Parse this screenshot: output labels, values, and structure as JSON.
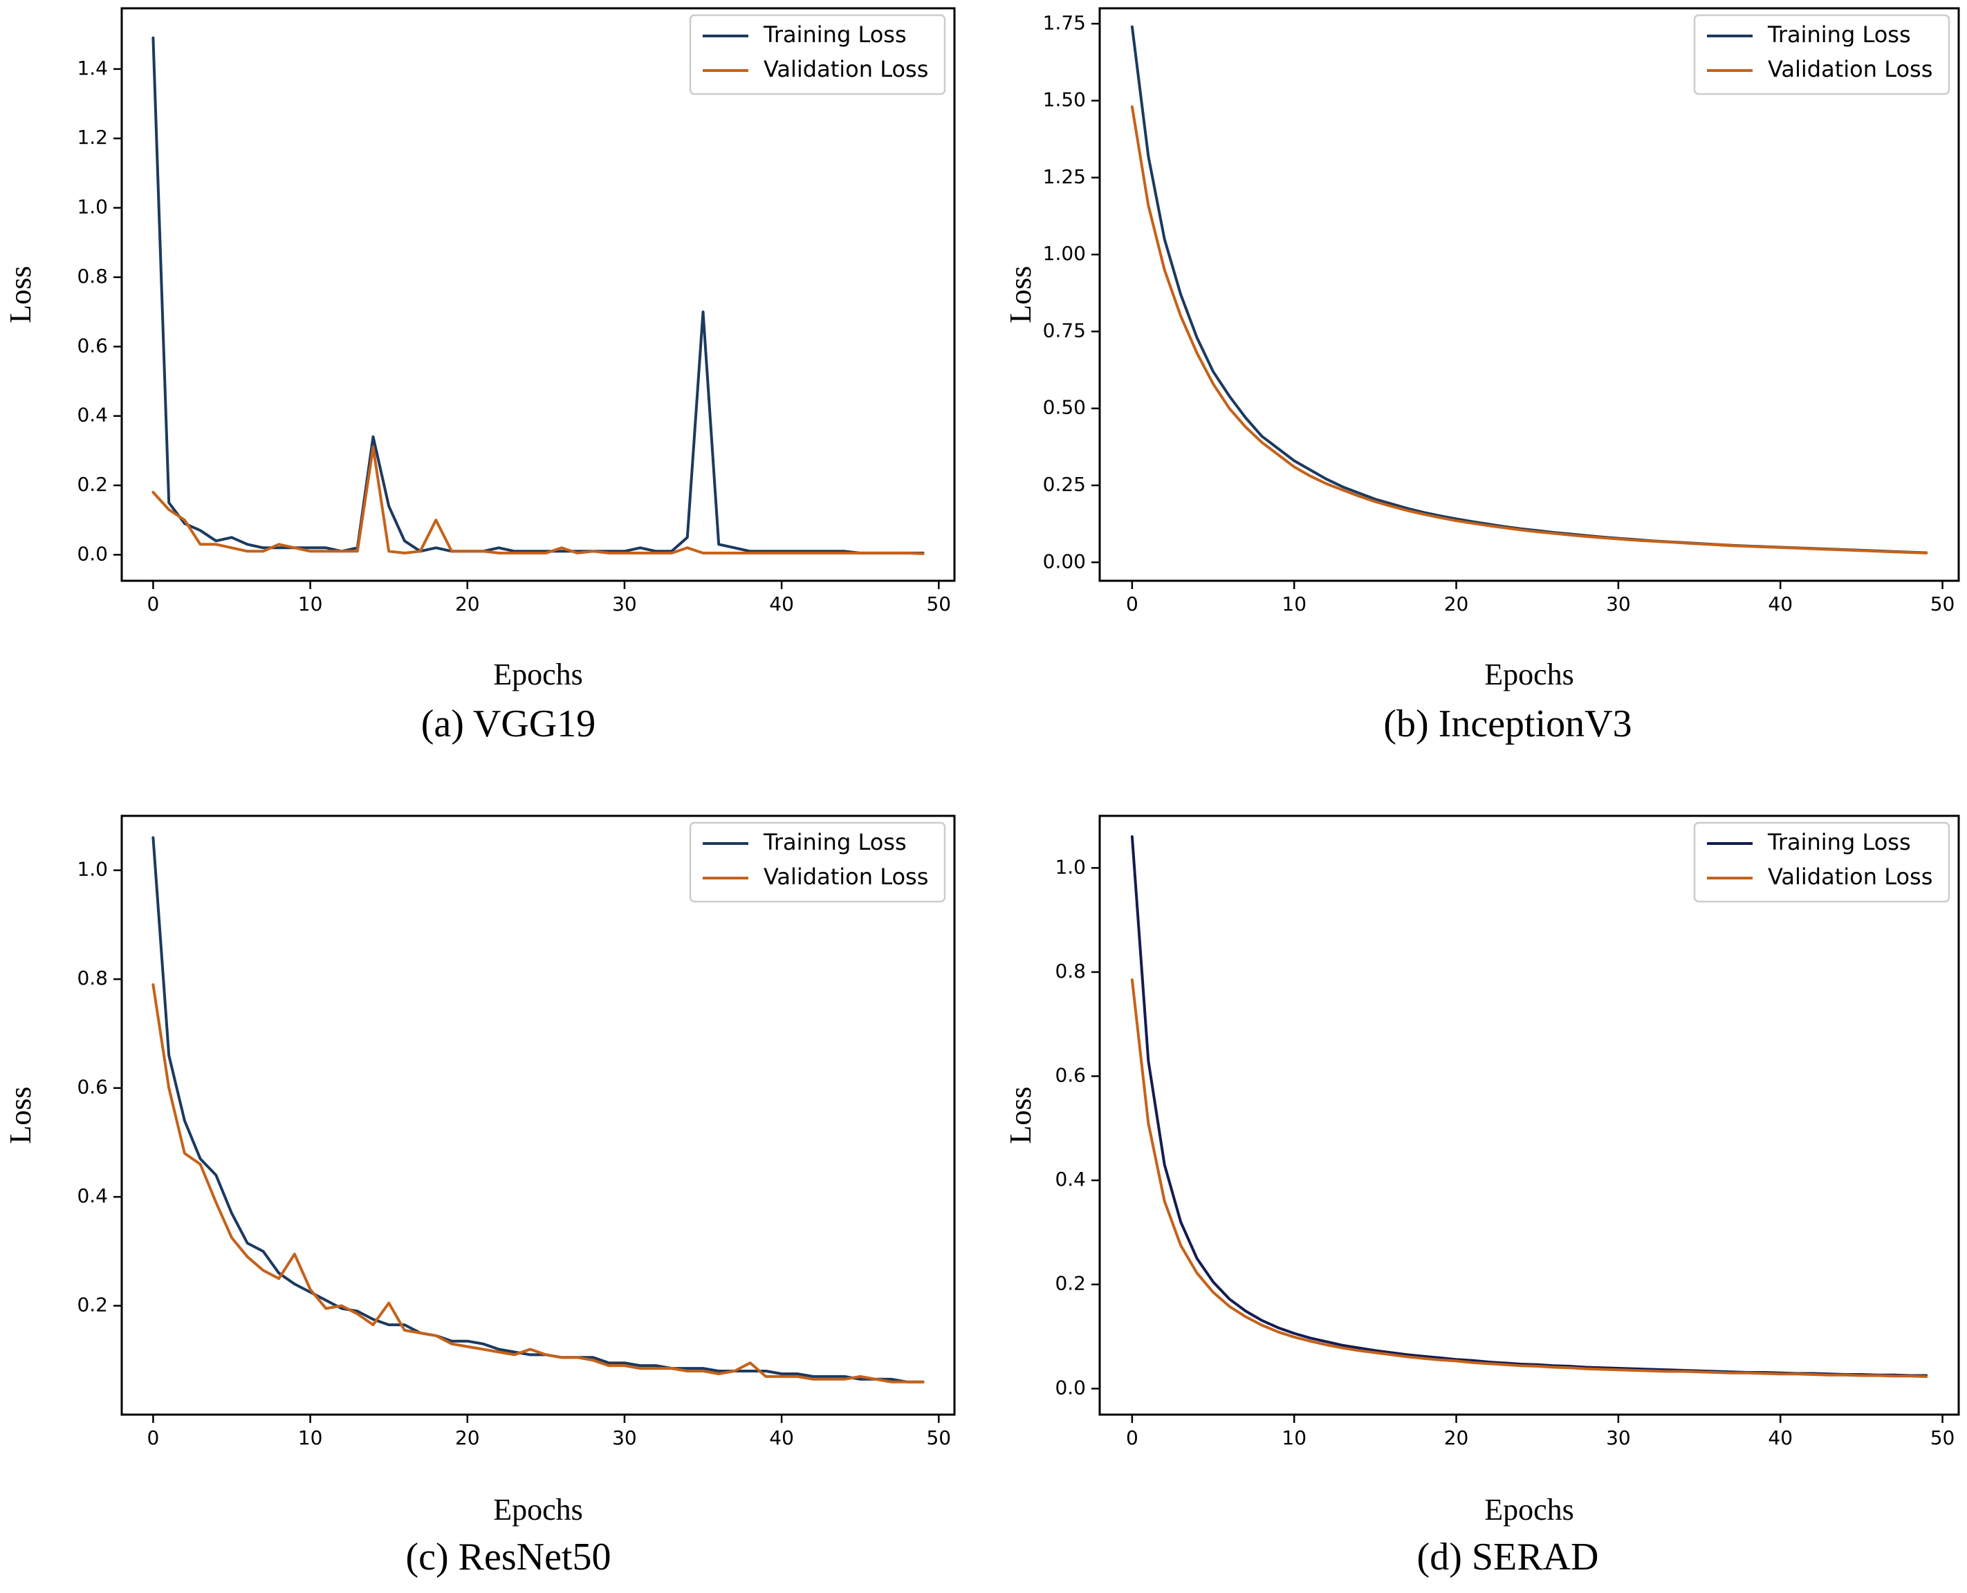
{
  "colors": {
    "training": "#1b3a5e",
    "validation": "#c5621a",
    "training_dark": "#141c50"
  },
  "chart_data": [
    {
      "type": "line",
      "caption": "(a) VGG19",
      "xlabel": "Epochs",
      "ylabel": "Loss",
      "xlim": [
        -2,
        51
      ],
      "ylim": [
        -0.075,
        1.575
      ],
      "xticks": [
        0,
        10,
        20,
        30,
        40,
        50
      ],
      "yticks": [
        0.0,
        0.2,
        0.4,
        0.6,
        0.8,
        1.0,
        1.2,
        1.4
      ],
      "ytick_labels": [
        "0.0",
        "0.2",
        "0.4",
        "0.6",
        "0.8",
        "1.0",
        "1.2",
        "1.4"
      ],
      "legend_position": "top-right",
      "series": [
        {
          "name": "Training Loss",
          "color_key": "training",
          "values": [
            1.49,
            0.15,
            0.09,
            0.07,
            0.04,
            0.05,
            0.03,
            0.02,
            0.02,
            0.02,
            0.02,
            0.02,
            0.01,
            0.02,
            0.34,
            0.14,
            0.04,
            0.01,
            0.02,
            0.01,
            0.01,
            0.01,
            0.02,
            0.01,
            0.01,
            0.01,
            0.01,
            0.01,
            0.01,
            0.01,
            0.01,
            0.02,
            0.01,
            0.01,
            0.05,
            0.7,
            0.03,
            0.02,
            0.01,
            0.01,
            0.01,
            0.01,
            0.01,
            0.01,
            0.01,
            0.005,
            0.005,
            0.005,
            0.005,
            0.005
          ]
        },
        {
          "name": "Validation Loss",
          "color_key": "validation",
          "values": [
            0.18,
            0.13,
            0.1,
            0.03,
            0.03,
            0.02,
            0.01,
            0.01,
            0.03,
            0.02,
            0.01,
            0.01,
            0.01,
            0.01,
            0.31,
            0.01,
            0.005,
            0.01,
            0.1,
            0.01,
            0.01,
            0.01,
            0.005,
            0.005,
            0.005,
            0.005,
            0.02,
            0.005,
            0.01,
            0.005,
            0.005,
            0.005,
            0.005,
            0.005,
            0.02,
            0.005,
            0.005,
            0.005,
            0.005,
            0.005,
            0.005,
            0.005,
            0.005,
            0.005,
            0.005,
            0.005,
            0.005,
            0.005,
            0.005,
            0.003
          ]
        }
      ]
    },
    {
      "type": "line",
      "caption": "(b) InceptionV3",
      "xlabel": "Epochs",
      "ylabel": "Loss",
      "xlim": [
        -2,
        51
      ],
      "ylim": [
        -0.06,
        1.8
      ],
      "xticks": [
        0,
        10,
        20,
        30,
        40,
        50
      ],
      "yticks": [
        0.0,
        0.25,
        0.5,
        0.75,
        1.0,
        1.25,
        1.5,
        1.75
      ],
      "ytick_labels": [
        "0.00",
        "0.25",
        "0.50",
        "0.75",
        "1.00",
        "1.25",
        "1.50",
        "1.75"
      ],
      "legend_position": "top-right",
      "series": [
        {
          "name": "Training Loss",
          "color_key": "training",
          "values": [
            1.74,
            1.32,
            1.05,
            0.87,
            0.73,
            0.62,
            0.54,
            0.47,
            0.41,
            0.37,
            0.33,
            0.3,
            0.27,
            0.245,
            0.225,
            0.205,
            0.19,
            0.175,
            0.162,
            0.151,
            0.141,
            0.132,
            0.124,
            0.116,
            0.109,
            0.103,
            0.097,
            0.092,
            0.087,
            0.082,
            0.078,
            0.074,
            0.07,
            0.067,
            0.064,
            0.061,
            0.058,
            0.055,
            0.053,
            0.051,
            0.049,
            0.047,
            0.045,
            0.043,
            0.041,
            0.039,
            0.037,
            0.035,
            0.033,
            0.031
          ]
        },
        {
          "name": "Validation Loss",
          "color_key": "validation",
          "values": [
            1.48,
            1.16,
            0.95,
            0.8,
            0.68,
            0.58,
            0.5,
            0.44,
            0.39,
            0.35,
            0.31,
            0.28,
            0.255,
            0.235,
            0.215,
            0.197,
            0.182,
            0.168,
            0.156,
            0.145,
            0.135,
            0.127,
            0.119,
            0.112,
            0.105,
            0.099,
            0.094,
            0.089,
            0.084,
            0.08,
            0.076,
            0.072,
            0.069,
            0.066,
            0.063,
            0.06,
            0.057,
            0.054,
            0.052,
            0.05,
            0.048,
            0.046,
            0.044,
            0.042,
            0.04,
            0.038,
            0.036,
            0.034,
            0.032,
            0.03
          ]
        }
      ]
    },
    {
      "type": "line",
      "caption": "(c) ResNet50",
      "xlabel": "Epochs",
      "ylabel": "Loss",
      "xlim": [
        -2,
        51
      ],
      "ylim": [
        0.0,
        1.1
      ],
      "xticks": [
        0,
        10,
        20,
        30,
        40,
        50
      ],
      "yticks": [
        0.2,
        0.4,
        0.6,
        0.8,
        1.0
      ],
      "ytick_labels": [
        "0.2",
        "0.4",
        "0.6",
        "0.8",
        "1.0"
      ],
      "legend_position": "top-right",
      "series": [
        {
          "name": "Training Loss",
          "color_key": "training",
          "values": [
            1.06,
            0.66,
            0.54,
            0.47,
            0.44,
            0.37,
            0.315,
            0.3,
            0.26,
            0.24,
            0.225,
            0.21,
            0.195,
            0.19,
            0.175,
            0.165,
            0.165,
            0.15,
            0.145,
            0.135,
            0.135,
            0.13,
            0.12,
            0.115,
            0.11,
            0.11,
            0.105,
            0.105,
            0.105,
            0.095,
            0.095,
            0.09,
            0.09,
            0.085,
            0.085,
            0.085,
            0.08,
            0.08,
            0.08,
            0.08,
            0.075,
            0.075,
            0.07,
            0.07,
            0.07,
            0.065,
            0.065,
            0.065,
            0.06,
            0.06
          ]
        },
        {
          "name": "Validation Loss",
          "color_key": "validation",
          "values": [
            0.79,
            0.6,
            0.48,
            0.46,
            0.39,
            0.325,
            0.29,
            0.265,
            0.25,
            0.295,
            0.23,
            0.195,
            0.2,
            0.185,
            0.165,
            0.205,
            0.155,
            0.15,
            0.145,
            0.13,
            0.125,
            0.12,
            0.115,
            0.11,
            0.12,
            0.11,
            0.105,
            0.105,
            0.1,
            0.09,
            0.09,
            0.085,
            0.085,
            0.085,
            0.08,
            0.08,
            0.075,
            0.08,
            0.095,
            0.07,
            0.07,
            0.07,
            0.065,
            0.065,
            0.065,
            0.07,
            0.065,
            0.06,
            0.06,
            0.06
          ]
        }
      ]
    },
    {
      "type": "line",
      "caption": "(d) SERAD",
      "xlabel": "Epochs",
      "ylabel": "Loss",
      "xlim": [
        -2,
        51
      ],
      "ylim": [
        -0.05,
        1.1
      ],
      "xticks": [
        0,
        10,
        20,
        30,
        40,
        50
      ],
      "yticks": [
        0.0,
        0.2,
        0.4,
        0.6,
        0.8,
        1.0
      ],
      "ytick_labels": [
        "0.0",
        "0.2",
        "0.4",
        "0.6",
        "0.8",
        "1.0"
      ],
      "legend_position": "top-right",
      "series": [
        {
          "name": "Training Loss",
          "color_key": "training_dark",
          "values": [
            1.06,
            0.63,
            0.43,
            0.32,
            0.25,
            0.205,
            0.172,
            0.149,
            0.131,
            0.117,
            0.106,
            0.097,
            0.09,
            0.083,
            0.078,
            0.073,
            0.069,
            0.065,
            0.062,
            0.059,
            0.056,
            0.054,
            0.051,
            0.049,
            0.047,
            0.046,
            0.044,
            0.043,
            0.041,
            0.04,
            0.039,
            0.038,
            0.037,
            0.036,
            0.035,
            0.034,
            0.033,
            0.032,
            0.031,
            0.031,
            0.03,
            0.029,
            0.029,
            0.028,
            0.027,
            0.027,
            0.026,
            0.026,
            0.025,
            0.025
          ]
        },
        {
          "name": "Validation Loss",
          "color_key": "validation",
          "values": [
            0.785,
            0.51,
            0.36,
            0.275,
            0.222,
            0.185,
            0.158,
            0.138,
            0.122,
            0.109,
            0.099,
            0.091,
            0.084,
            0.078,
            0.073,
            0.069,
            0.065,
            0.061,
            0.058,
            0.055,
            0.053,
            0.05,
            0.048,
            0.046,
            0.044,
            0.043,
            0.041,
            0.04,
            0.038,
            0.037,
            0.036,
            0.035,
            0.034,
            0.033,
            0.033,
            0.032,
            0.031,
            0.03,
            0.03,
            0.029,
            0.028,
            0.028,
            0.027,
            0.026,
            0.026,
            0.025,
            0.025,
            0.024,
            0.024,
            0.023
          ]
        }
      ]
    }
  ]
}
